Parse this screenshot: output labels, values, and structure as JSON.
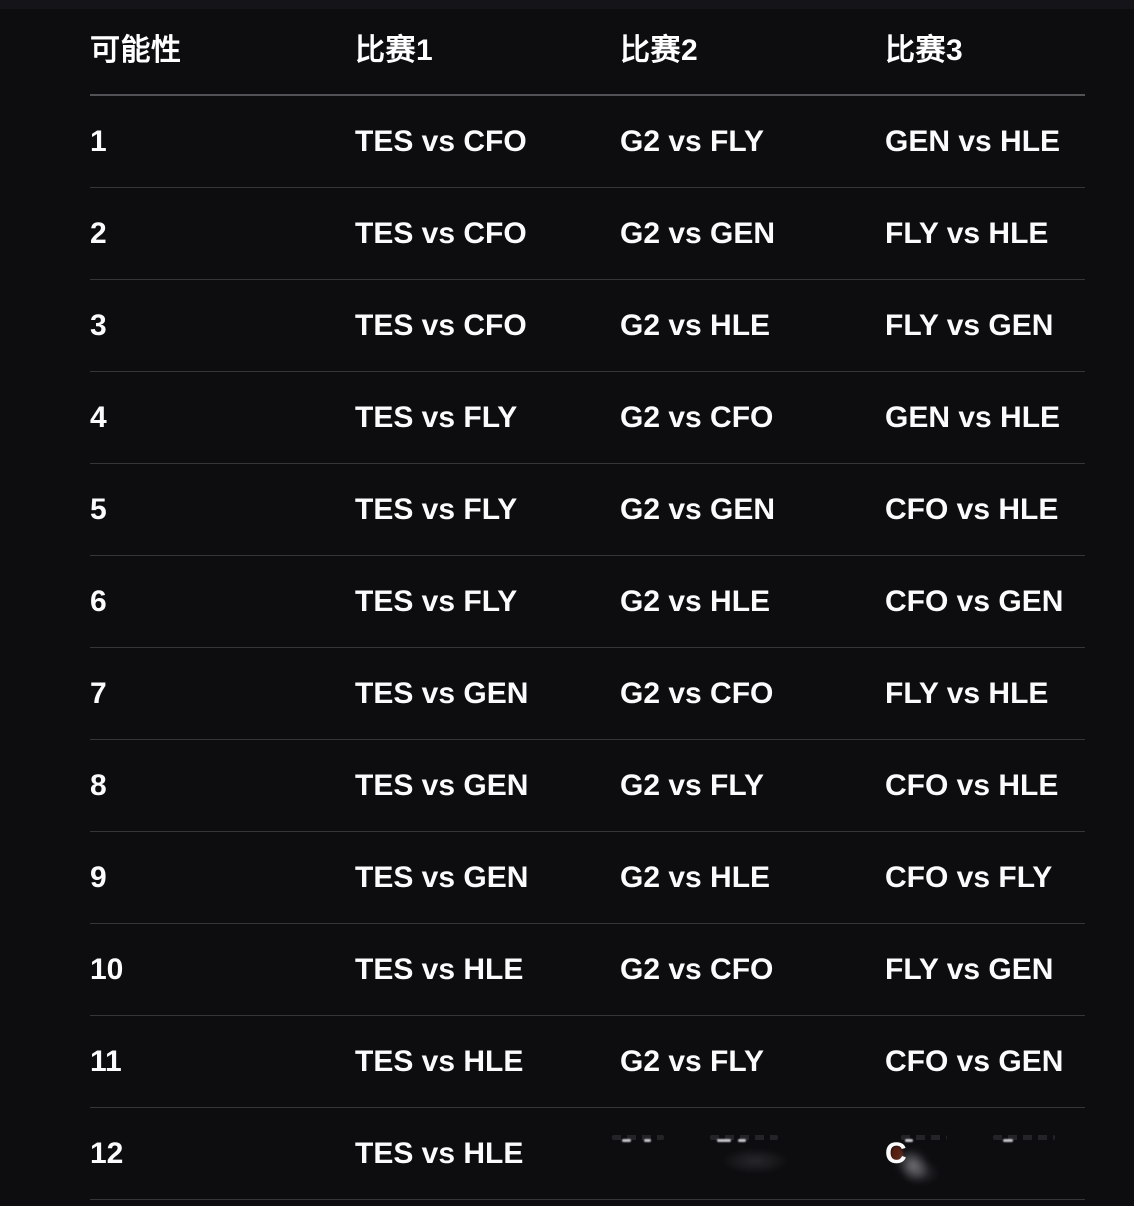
{
  "colors": {
    "background": "#0d0d10",
    "text": "#ffffff",
    "header_divider": "#515156",
    "row_divider": "#35353a"
  },
  "table": {
    "headers": [
      {
        "id": "possibility",
        "label": "可能性"
      },
      {
        "id": "match1",
        "label": "比赛1"
      },
      {
        "id": "match2",
        "label": "比赛2"
      },
      {
        "id": "match3",
        "label": "比赛3"
      }
    ],
    "rows": [
      {
        "possibility": "1",
        "match1": "TES vs CFO",
        "match2": "G2 vs FLY",
        "match3": "GEN vs HLE",
        "smudged": false
      },
      {
        "possibility": "2",
        "match1": "TES vs CFO",
        "match2": "G2 vs GEN",
        "match3": "FLY vs HLE",
        "smudged": false
      },
      {
        "possibility": "3",
        "match1": "TES vs CFO",
        "match2": "G2 vs HLE",
        "match3": "FLY vs GEN",
        "smudged": false
      },
      {
        "possibility": "4",
        "match1": "TES vs FLY",
        "match2": "G2 vs CFO",
        "match3": "GEN vs HLE",
        "smudged": false
      },
      {
        "possibility": "5",
        "match1": "TES vs FLY",
        "match2": "G2 vs GEN",
        "match3": "CFO vs HLE",
        "smudged": false
      },
      {
        "possibility": "6",
        "match1": "TES vs FLY",
        "match2": "G2 vs HLE",
        "match3": "CFO vs GEN",
        "smudged": false
      },
      {
        "possibility": "7",
        "match1": "TES vs GEN",
        "match2": "G2 vs CFO",
        "match3": "FLY vs HLE",
        "smudged": false
      },
      {
        "possibility": "8",
        "match1": "TES vs GEN",
        "match2": "G2 vs FLY",
        "match3": "CFO vs HLE",
        "smudged": false
      },
      {
        "possibility": "9",
        "match1": "TES vs GEN",
        "match2": "G2 vs HLE",
        "match3": "CFO vs FLY",
        "smudged": false
      },
      {
        "possibility": "10",
        "match1": "TES vs HLE",
        "match2": "G2 vs CFO",
        "match3": "FLY vs GEN",
        "smudged": false
      },
      {
        "possibility": "11",
        "match1": "TES vs HLE",
        "match2": "G2 vs FLY",
        "match3": "CFO vs GEN",
        "smudged": false
      },
      {
        "possibility": "12",
        "match1": "TES vs HLE",
        "match2": "",
        "match3": "C",
        "smudged": true
      }
    ]
  }
}
